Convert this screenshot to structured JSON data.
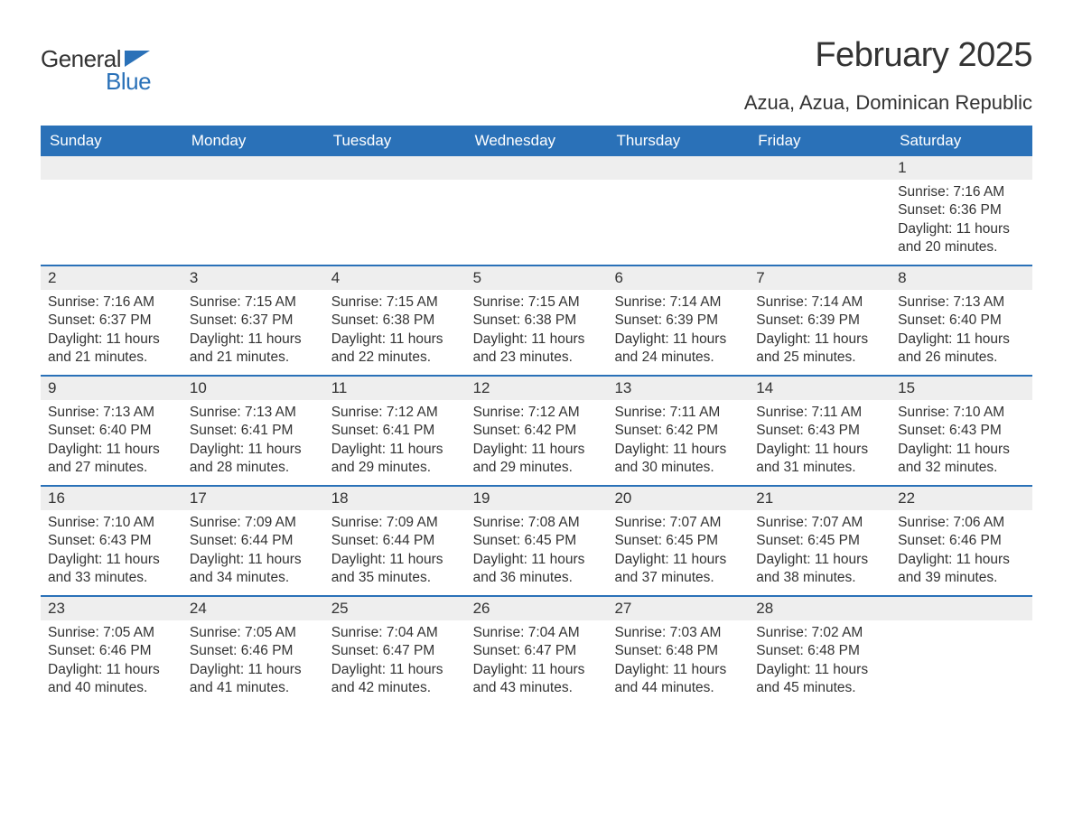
{
  "logo": {
    "word1": "General",
    "word2": "Blue",
    "accent_color": "#2a71b8"
  },
  "title": "February 2025",
  "location": "Azua, Azua, Dominican Republic",
  "colors": {
    "header_bg": "#2a71b8",
    "header_text": "#ffffff",
    "daynum_bg": "#eeeeee",
    "row_border": "#2a71b8",
    "body_text": "#333333",
    "page_bg": "#ffffff"
  },
  "day_headers": [
    "Sunday",
    "Monday",
    "Tuesday",
    "Wednesday",
    "Thursday",
    "Friday",
    "Saturday"
  ],
  "weeks": [
    [
      null,
      null,
      null,
      null,
      null,
      null,
      {
        "n": "1",
        "sunrise": "Sunrise: 7:16 AM",
        "sunset": "Sunset: 6:36 PM",
        "daylight": "Daylight: 11 hours and 20 minutes."
      }
    ],
    [
      {
        "n": "2",
        "sunrise": "Sunrise: 7:16 AM",
        "sunset": "Sunset: 6:37 PM",
        "daylight": "Daylight: 11 hours and 21 minutes."
      },
      {
        "n": "3",
        "sunrise": "Sunrise: 7:15 AM",
        "sunset": "Sunset: 6:37 PM",
        "daylight": "Daylight: 11 hours and 21 minutes."
      },
      {
        "n": "4",
        "sunrise": "Sunrise: 7:15 AM",
        "sunset": "Sunset: 6:38 PM",
        "daylight": "Daylight: 11 hours and 22 minutes."
      },
      {
        "n": "5",
        "sunrise": "Sunrise: 7:15 AM",
        "sunset": "Sunset: 6:38 PM",
        "daylight": "Daylight: 11 hours and 23 minutes."
      },
      {
        "n": "6",
        "sunrise": "Sunrise: 7:14 AM",
        "sunset": "Sunset: 6:39 PM",
        "daylight": "Daylight: 11 hours and 24 minutes."
      },
      {
        "n": "7",
        "sunrise": "Sunrise: 7:14 AM",
        "sunset": "Sunset: 6:39 PM",
        "daylight": "Daylight: 11 hours and 25 minutes."
      },
      {
        "n": "8",
        "sunrise": "Sunrise: 7:13 AM",
        "sunset": "Sunset: 6:40 PM",
        "daylight": "Daylight: 11 hours and 26 minutes."
      }
    ],
    [
      {
        "n": "9",
        "sunrise": "Sunrise: 7:13 AM",
        "sunset": "Sunset: 6:40 PM",
        "daylight": "Daylight: 11 hours and 27 minutes."
      },
      {
        "n": "10",
        "sunrise": "Sunrise: 7:13 AM",
        "sunset": "Sunset: 6:41 PM",
        "daylight": "Daylight: 11 hours and 28 minutes."
      },
      {
        "n": "11",
        "sunrise": "Sunrise: 7:12 AM",
        "sunset": "Sunset: 6:41 PM",
        "daylight": "Daylight: 11 hours and 29 minutes."
      },
      {
        "n": "12",
        "sunrise": "Sunrise: 7:12 AM",
        "sunset": "Sunset: 6:42 PM",
        "daylight": "Daylight: 11 hours and 29 minutes."
      },
      {
        "n": "13",
        "sunrise": "Sunrise: 7:11 AM",
        "sunset": "Sunset: 6:42 PM",
        "daylight": "Daylight: 11 hours and 30 minutes."
      },
      {
        "n": "14",
        "sunrise": "Sunrise: 7:11 AM",
        "sunset": "Sunset: 6:43 PM",
        "daylight": "Daylight: 11 hours and 31 minutes."
      },
      {
        "n": "15",
        "sunrise": "Sunrise: 7:10 AM",
        "sunset": "Sunset: 6:43 PM",
        "daylight": "Daylight: 11 hours and 32 minutes."
      }
    ],
    [
      {
        "n": "16",
        "sunrise": "Sunrise: 7:10 AM",
        "sunset": "Sunset: 6:43 PM",
        "daylight": "Daylight: 11 hours and 33 minutes."
      },
      {
        "n": "17",
        "sunrise": "Sunrise: 7:09 AM",
        "sunset": "Sunset: 6:44 PM",
        "daylight": "Daylight: 11 hours and 34 minutes."
      },
      {
        "n": "18",
        "sunrise": "Sunrise: 7:09 AM",
        "sunset": "Sunset: 6:44 PM",
        "daylight": "Daylight: 11 hours and 35 minutes."
      },
      {
        "n": "19",
        "sunrise": "Sunrise: 7:08 AM",
        "sunset": "Sunset: 6:45 PM",
        "daylight": "Daylight: 11 hours and 36 minutes."
      },
      {
        "n": "20",
        "sunrise": "Sunrise: 7:07 AM",
        "sunset": "Sunset: 6:45 PM",
        "daylight": "Daylight: 11 hours and 37 minutes."
      },
      {
        "n": "21",
        "sunrise": "Sunrise: 7:07 AM",
        "sunset": "Sunset: 6:45 PM",
        "daylight": "Daylight: 11 hours and 38 minutes."
      },
      {
        "n": "22",
        "sunrise": "Sunrise: 7:06 AM",
        "sunset": "Sunset: 6:46 PM",
        "daylight": "Daylight: 11 hours and 39 minutes."
      }
    ],
    [
      {
        "n": "23",
        "sunrise": "Sunrise: 7:05 AM",
        "sunset": "Sunset: 6:46 PM",
        "daylight": "Daylight: 11 hours and 40 minutes."
      },
      {
        "n": "24",
        "sunrise": "Sunrise: 7:05 AM",
        "sunset": "Sunset: 6:46 PM",
        "daylight": "Daylight: 11 hours and 41 minutes."
      },
      {
        "n": "25",
        "sunrise": "Sunrise: 7:04 AM",
        "sunset": "Sunset: 6:47 PM",
        "daylight": "Daylight: 11 hours and 42 minutes."
      },
      {
        "n": "26",
        "sunrise": "Sunrise: 7:04 AM",
        "sunset": "Sunset: 6:47 PM",
        "daylight": "Daylight: 11 hours and 43 minutes."
      },
      {
        "n": "27",
        "sunrise": "Sunrise: 7:03 AM",
        "sunset": "Sunset: 6:48 PM",
        "daylight": "Daylight: 11 hours and 44 minutes."
      },
      {
        "n": "28",
        "sunrise": "Sunrise: 7:02 AM",
        "sunset": "Sunset: 6:48 PM",
        "daylight": "Daylight: 11 hours and 45 minutes."
      },
      null
    ]
  ]
}
